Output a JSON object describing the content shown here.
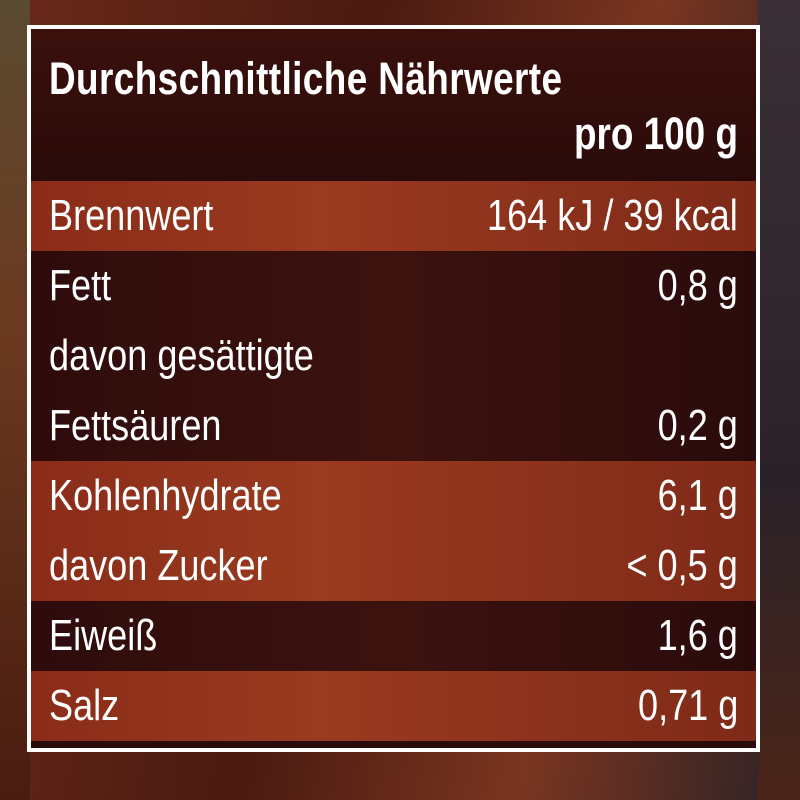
{
  "header": {
    "title": "Durchschnittliche Nährwerte",
    "subtitle": "pro 100 g"
  },
  "rows": [
    {
      "label": "Brennwert",
      "value": "164 kJ / 39 kcal",
      "band": "light"
    },
    {
      "label": "Fett",
      "value": "0,8 g",
      "band": "dark"
    },
    {
      "label": "davon gesättigte",
      "value": "",
      "band": "dark"
    },
    {
      "label": "Fettsäuren",
      "value": "0,2 g",
      "band": "dark"
    },
    {
      "label": "Kohlenhydrate",
      "value": "6,1 g",
      "band": "light"
    },
    {
      "label": "davon Zucker",
      "value": "< 0,5 g",
      "band": "light"
    },
    {
      "label": "Eiweiß",
      "value": "1,6 g",
      "band": "dark"
    },
    {
      "label": "Salz",
      "value": "0,71 g",
      "band": "light"
    }
  ],
  "colors": {
    "header": "#2a0b0a",
    "light_band": "#8a2c18",
    "dark_band": "#2e0c0b",
    "text": "#ffffff",
    "border": "#ffffff"
  }
}
